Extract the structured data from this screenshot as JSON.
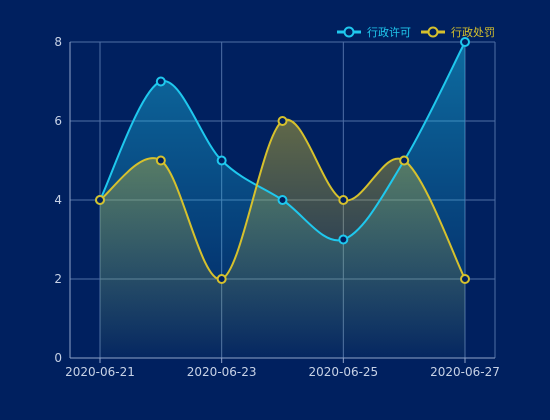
{
  "chart_data": {
    "type": "line",
    "smooth": true,
    "area_fill": true,
    "x": [
      "2020-06-21",
      "2020-06-22",
      "2020-06-23",
      "2020-06-24",
      "2020-06-25",
      "2020-06-26",
      "2020-06-27"
    ],
    "x_tick_labels": [
      "2020-06-21",
      "2020-06-23",
      "2020-06-25",
      "2020-06-27"
    ],
    "ylim": [
      0,
      8
    ],
    "y_ticks": [
      0,
      2,
      4,
      6,
      8
    ],
    "grid": true,
    "legend_position": "top-right",
    "series": [
      {
        "name": "行政许可",
        "color": "#1fc8ee",
        "values": [
          4,
          7,
          5,
          4,
          3,
          5,
          8
        ]
      },
      {
        "name": "行政处罚",
        "color": "#d6c12d",
        "values": [
          4,
          5,
          2,
          6,
          4,
          5,
          2
        ]
      }
    ]
  },
  "colors": {
    "background": "#00205f",
    "grid": "#4f6fa6",
    "marker_fill": "#00205f"
  }
}
